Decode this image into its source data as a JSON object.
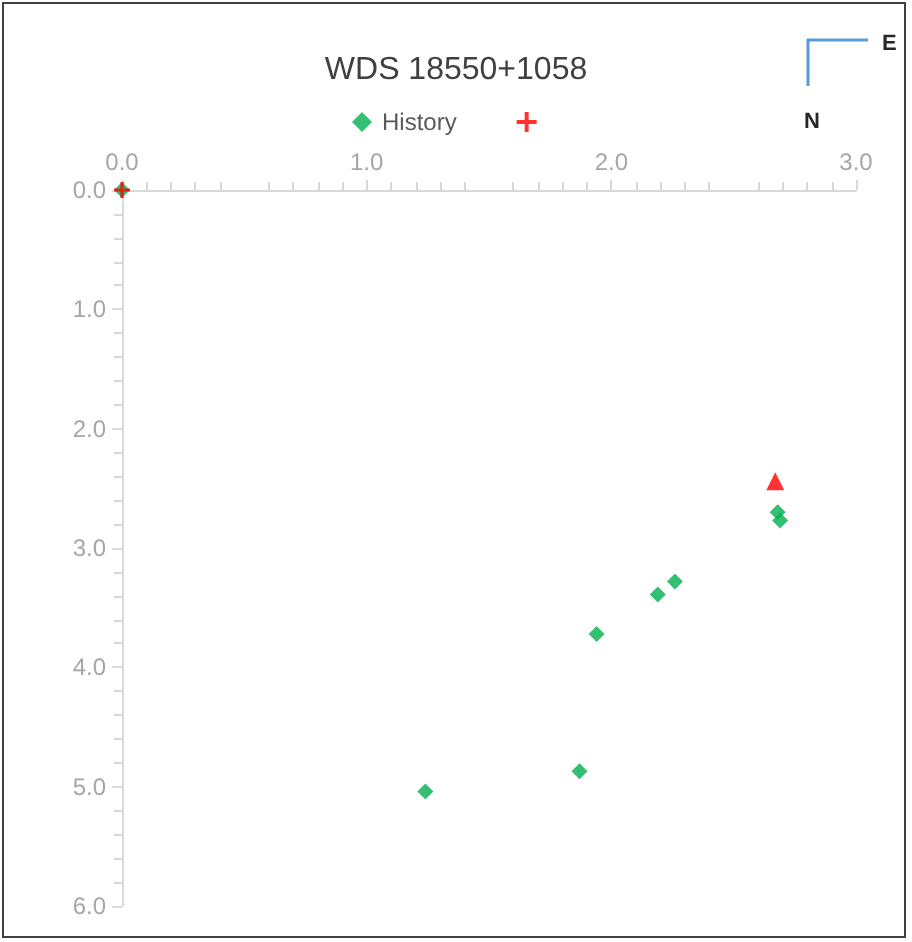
{
  "chart_data": {
    "type": "scatter",
    "title": "WDS 18550+1058",
    "legend": "top",
    "grid": false,
    "xlim": [
      0,
      3
    ],
    "xticks": [
      {
        "value": 0,
        "label": "0.0"
      },
      {
        "value": 1,
        "label": "1.0"
      },
      {
        "value": 2,
        "label": "2.0"
      },
      {
        "value": 3,
        "label": "3.0"
      }
    ],
    "ylim": [
      6,
      0
    ],
    "yticks": [
      {
        "value": 0,
        "label": "0.0"
      },
      {
        "value": 1,
        "label": "1.0"
      },
      {
        "value": 2,
        "label": "2.0"
      },
      {
        "value": 3,
        "label": "3.0"
      },
      {
        "value": 4,
        "label": "4.0"
      },
      {
        "value": 5,
        "label": "5.0"
      },
      {
        "value": 6,
        "label": "6.0"
      }
    ],
    "annotations": [
      "E",
      "N"
    ],
    "series": [
      {
        "name": "History",
        "color": "#00b050",
        "marker": "diamond",
        "x": [
          0,
          2.68,
          2.69,
          2.26,
          2.19,
          1.94,
          1.87,
          1.24
        ],
        "values": [
          0,
          2.7,
          2.77,
          3.28,
          3.39,
          3.72,
          4.87,
          5.04
        ]
      },
      {
        "color": "#ff0000",
        "marker": "cross",
        "x": [
          0
        ],
        "values": [
          0
        ]
      },
      {
        "color": "#ff0000",
        "marker": "triangle",
        "x": [
          2.67
        ],
        "values": [
          2.44
        ]
      }
    ]
  }
}
